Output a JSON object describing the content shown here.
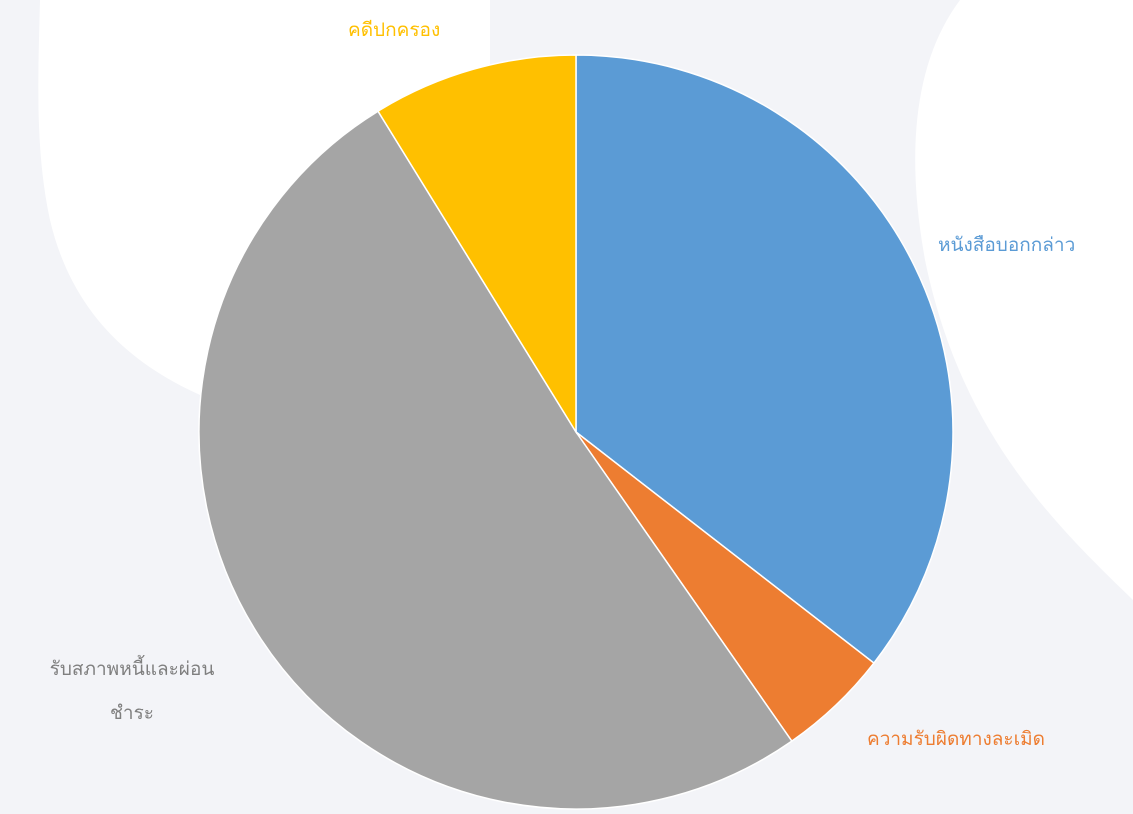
{
  "chart_data": {
    "type": "pie",
    "title": "",
    "start_at": "top",
    "direction": "clockwise",
    "slices": [
      {
        "label": "หนังสือบอกกล่าว",
        "value": 35.5,
        "color": "#5b9bd5"
      },
      {
        "label": "ความรับผิดทางละเมิด",
        "value": 4.8,
        "color": "#ed7d31"
      },
      {
        "label": "รับสภาพหนี้และผ่อนชำระ",
        "value": 50.9,
        "color": "#a5a5a5"
      },
      {
        "label": "คดีปกครอง",
        "value": 8.8,
        "color": "#ffc000"
      }
    ],
    "label_lines": [
      [
        "หนังสือบอกกล่าว"
      ],
      [
        "ความรับผิดทางละเมิด"
      ],
      [
        "รับสภาพหนี้และผ่อน",
        "ชำระ"
      ],
      [
        "คดีปกครอง"
      ]
    ],
    "legend": "none",
    "data_labels": "category-name-outside"
  },
  "background": {
    "page_color": "#f3f4f8",
    "shape_color": "#ffffff"
  }
}
